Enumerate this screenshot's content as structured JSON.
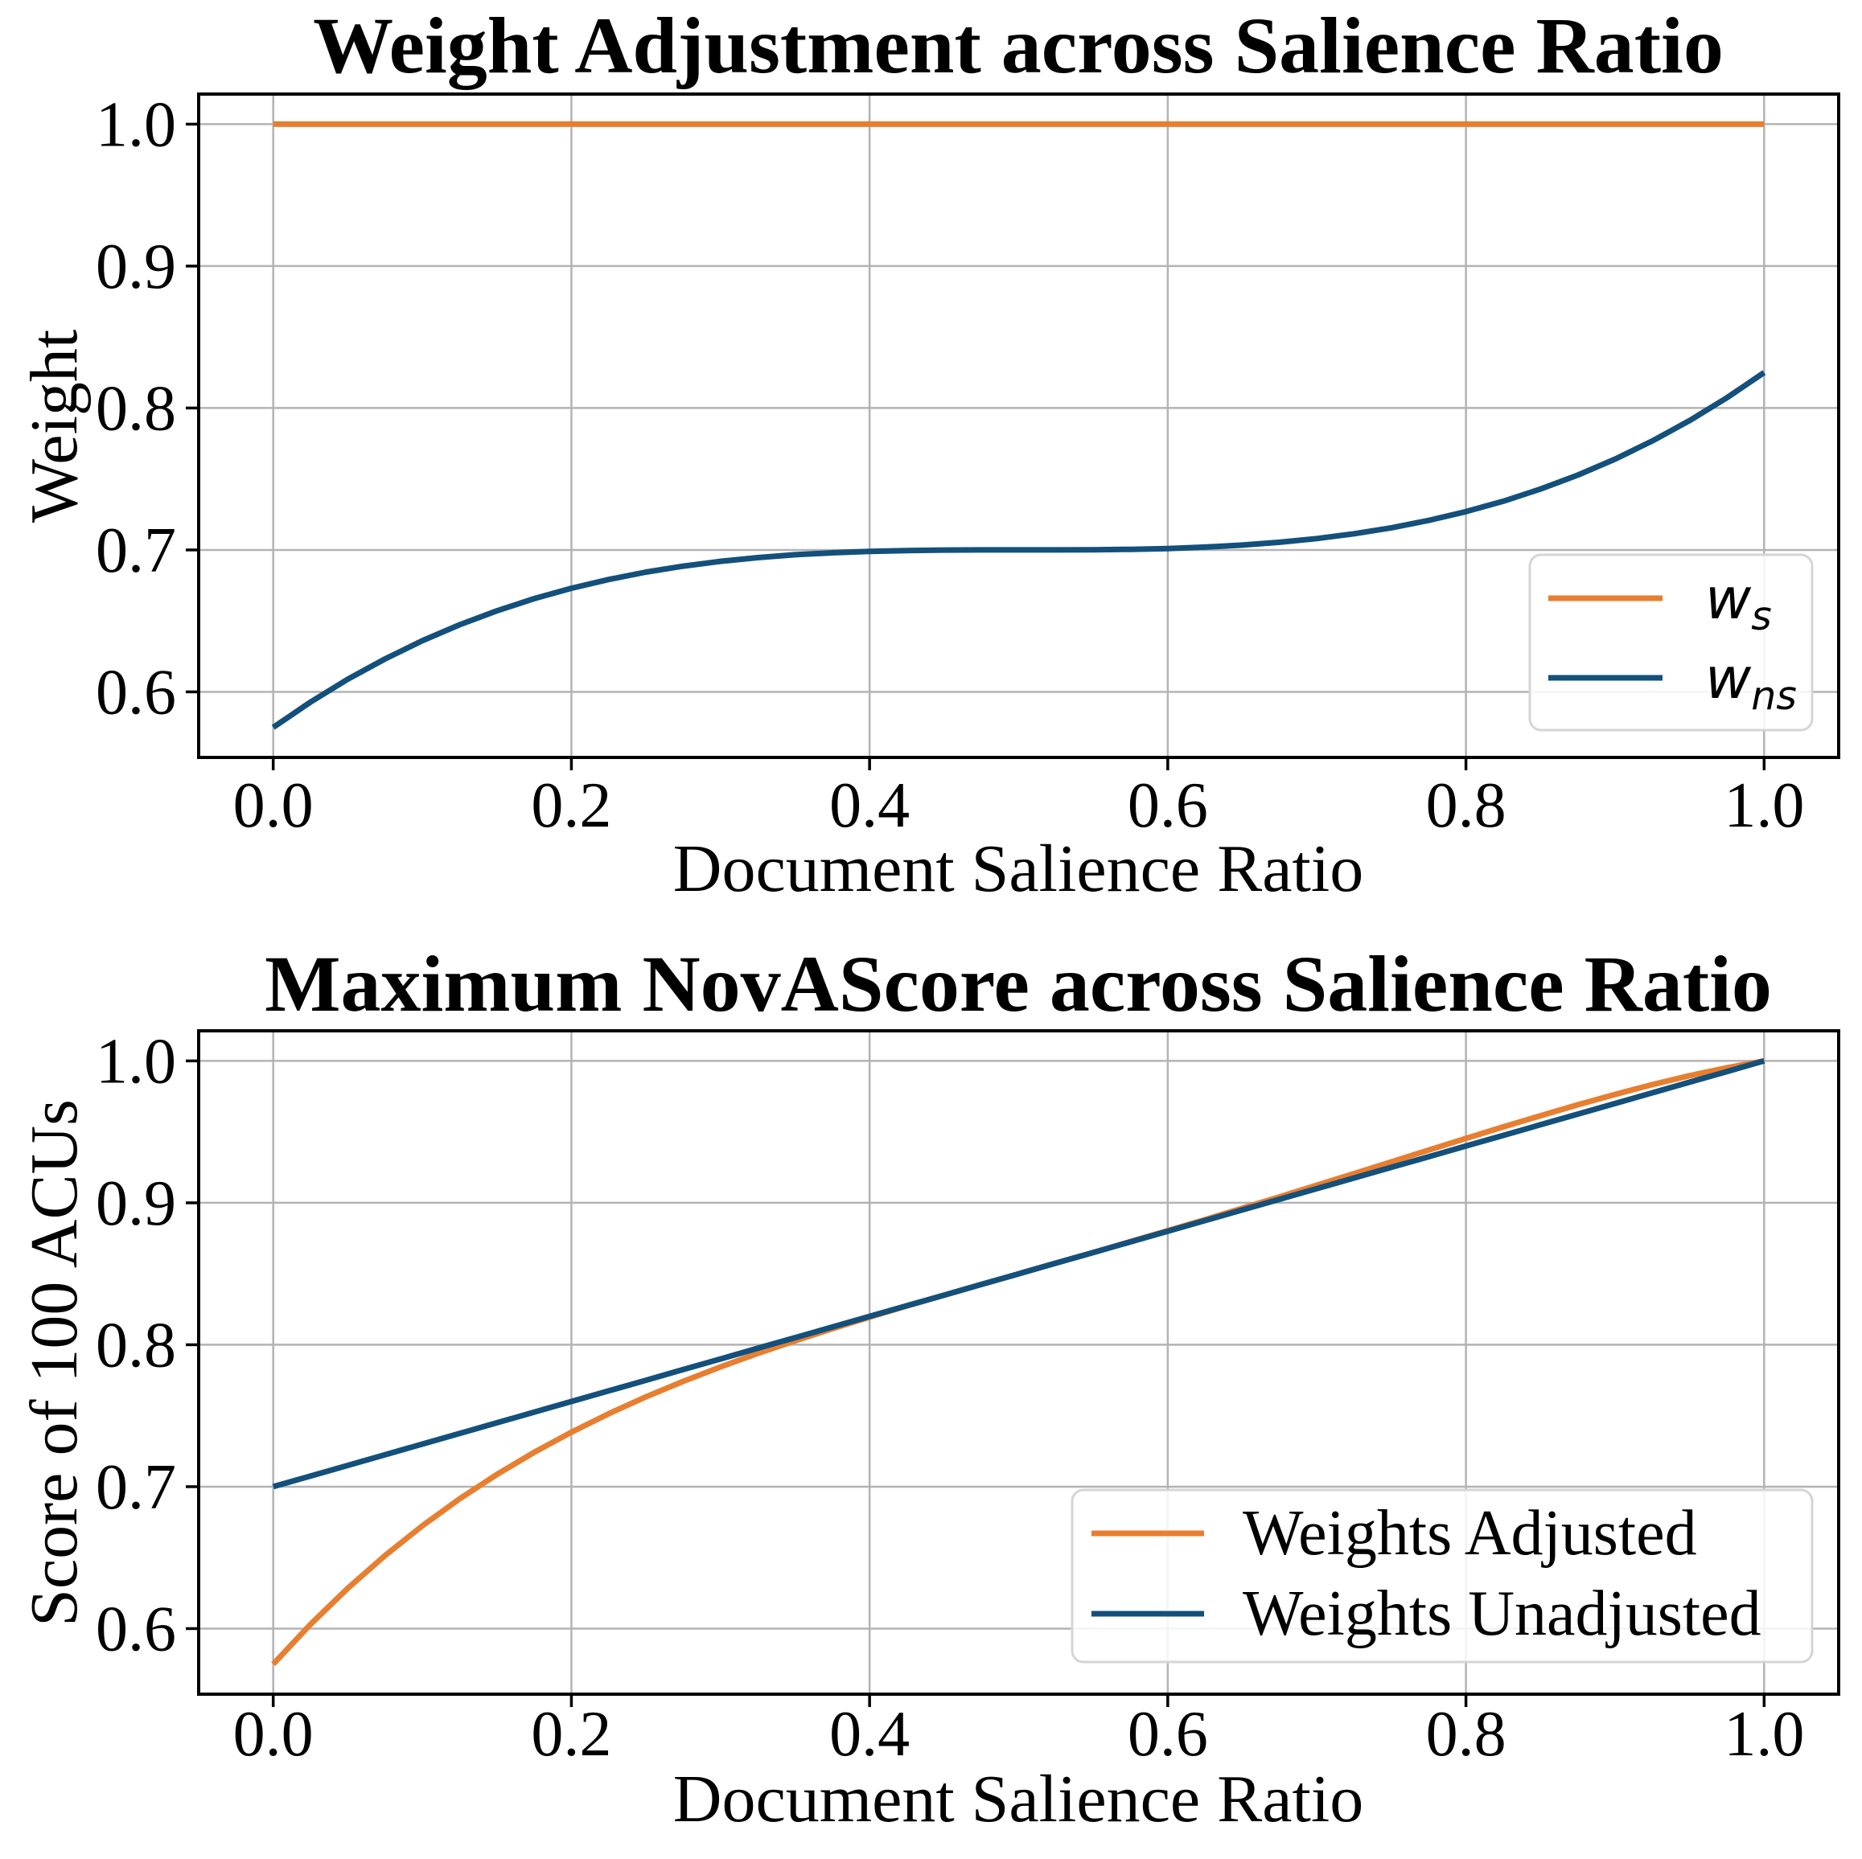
{
  "figure": {
    "background": "#FFFFFF",
    "grid_color": "#B3B3B3",
    "spine_color": "#000000",
    "tick_color": "#000000",
    "text_color": "#000000",
    "legend_border_color": "#D5D5D5"
  },
  "chart_data": [
    {
      "type": "line",
      "title": "Weight Adjustment across Salience Ratio",
      "xlabel": "Document Salience Ratio",
      "ylabel": "Weight",
      "xlim": [
        -0.05,
        1.05
      ],
      "ylim": [
        0.5538,
        1.0212
      ],
      "grid": true,
      "legend_position": "lower right",
      "xticks": {
        "values": [
          0.0,
          0.2,
          0.4,
          0.6,
          0.8,
          1.0
        ],
        "labels": [
          "0.0",
          "0.2",
          "0.4",
          "0.6",
          "0.8",
          "1.0"
        ]
      },
      "yticks": {
        "values": [
          1.0,
          0.9,
          0.8,
          0.7,
          0.6
        ],
        "labels": [
          "1.0",
          "0.9",
          "0.8",
          "0.7",
          "0.6"
        ]
      },
      "x": [
        0,
        0.025,
        0.05,
        0.075,
        0.1,
        0.125,
        0.15,
        0.175,
        0.2,
        0.225,
        0.25,
        0.275,
        0.3,
        0.325,
        0.35,
        0.375,
        0.4,
        0.425,
        0.45,
        0.475,
        0.5,
        0.525,
        0.55,
        0.575,
        0.6,
        0.625,
        0.65,
        0.675,
        0.7,
        0.725,
        0.75,
        0.775,
        0.8,
        0.825,
        0.85,
        0.875,
        0.9,
        0.925,
        0.95,
        0.975,
        1.0
      ],
      "series": [
        {
          "name": "w_s",
          "legend_base": "w",
          "legend_sub": "s",
          "color": "#E87E2F",
          "values": [
            1,
            1,
            1,
            1,
            1,
            1,
            1,
            1,
            1,
            1,
            1,
            1,
            1,
            1,
            1,
            1,
            1,
            1,
            1,
            1,
            1,
            1,
            1,
            1,
            1,
            1,
            1,
            1,
            1,
            1,
            1,
            1,
            1,
            1,
            1,
            1,
            1,
            1,
            1,
            1,
            1
          ]
        },
        {
          "name": "w_ns",
          "legend_base": "w",
          "legend_sub": "ns",
          "color": "#13507B",
          "values": [
            0.575,
            0.5928,
            0.6089,
            0.6232,
            0.636,
            0.6473,
            0.6571,
            0.6657,
            0.673,
            0.6792,
            0.6844,
            0.6886,
            0.692,
            0.6946,
            0.6966,
            0.698,
            0.699,
            0.6996,
            0.6999,
            0.7,
            0.7,
            0.7,
            0.7001,
            0.7004,
            0.701,
            0.702,
            0.7034,
            0.7054,
            0.708,
            0.7114,
            0.7156,
            0.7208,
            0.727,
            0.7343,
            0.7429,
            0.7527,
            0.764,
            0.7768,
            0.7911,
            0.8072,
            0.825
          ]
        }
      ]
    },
    {
      "type": "line",
      "title": "Maximum NovAScore across Salience Ratio",
      "xlabel": "Document Salience Ratio",
      "ylabel": "Score of 100 ACUs",
      "xlim": [
        -0.05,
        1.05
      ],
      "ylim": [
        0.5538,
        1.0212
      ],
      "grid": true,
      "legend_position": "lower right",
      "xticks": {
        "values": [
          0.0,
          0.2,
          0.4,
          0.6,
          0.8,
          1.0
        ],
        "labels": [
          "0.0",
          "0.2",
          "0.4",
          "0.6",
          "0.8",
          "1.0"
        ]
      },
      "yticks": {
        "values": [
          1.0,
          0.9,
          0.8,
          0.7,
          0.6
        ],
        "labels": [
          "1.0",
          "0.9",
          "0.8",
          "0.7",
          "0.6"
        ]
      },
      "x": [
        0,
        0.025,
        0.05,
        0.075,
        0.1,
        0.125,
        0.15,
        0.175,
        0.2,
        0.225,
        0.25,
        0.275,
        0.3,
        0.325,
        0.35,
        0.375,
        0.4,
        0.425,
        0.45,
        0.475,
        0.5,
        0.525,
        0.55,
        0.575,
        0.6,
        0.625,
        0.65,
        0.675,
        0.7,
        0.725,
        0.75,
        0.775,
        0.8,
        0.825,
        0.85,
        0.875,
        0.9,
        0.925,
        0.95,
        0.975,
        1.0
      ],
      "series": [
        {
          "name": "Weights Adjusted",
          "label": "Weights Adjusted",
          "color": "#E87E2F",
          "values": [
            0.575,
            0.603,
            0.6284,
            0.6515,
            0.6724,
            0.6914,
            0.7086,
            0.7242,
            0.7384,
            0.7514,
            0.7633,
            0.7742,
            0.7844,
            0.7939,
            0.8028,
            0.8113,
            0.8194,
            0.8273,
            0.8349,
            0.8425,
            0.85,
            0.8575,
            0.865,
            0.8727,
            0.8804,
            0.8882,
            0.8962,
            0.9042,
            0.9124,
            0.9206,
            0.9289,
            0.9372,
            0.9454,
            0.9535,
            0.9614,
            0.9691,
            0.9764,
            0.9833,
            0.9896,
            0.9952,
            1.0
          ]
        },
        {
          "name": "Weights Unadjusted",
          "label": "Weights Unadjusted",
          "color": "#13507B",
          "values": [
            0.7,
            0.7075,
            0.715,
            0.7225,
            0.73,
            0.7375,
            0.745,
            0.7525,
            0.76,
            0.7675,
            0.775,
            0.7825,
            0.79,
            0.7975,
            0.805,
            0.8125,
            0.82,
            0.8275,
            0.835,
            0.8425,
            0.85,
            0.8575,
            0.865,
            0.8725,
            0.88,
            0.8875,
            0.895,
            0.9025,
            0.91,
            0.9175,
            0.925,
            0.9325,
            0.94,
            0.9475,
            0.955,
            0.9625,
            0.97,
            0.9775,
            0.985,
            0.9925,
            1.0
          ]
        }
      ]
    }
  ]
}
